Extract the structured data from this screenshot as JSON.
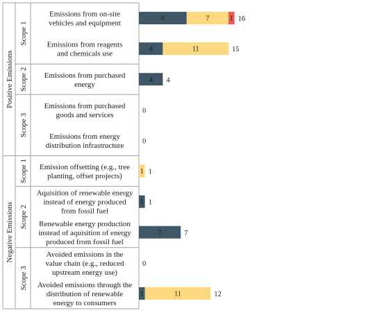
{
  "colors": {
    "dark": "#3f5767",
    "light": "#fcd97f",
    "red": "#ea5b53",
    "text_on_dark": "#111111",
    "grid_line": "#a0a0a0"
  },
  "chart_data": {
    "type": "bar",
    "orientation": "horizontal",
    "stacked": true,
    "groups": [
      {
        "label": "Positive Emissions",
        "scopes": [
          {
            "label": "Scope 1",
            "categories": [
              {
                "label": [
                  "Emissions from on-site",
                  "vehicles and equipment"
                ],
                "segments": [
                  8,
                  7,
                  1
                ],
                "total": "16"
              },
              {
                "label": [
                  "Emissions from reagents",
                  "and chemicals use"
                ],
                "segments": [
                  4,
                  11
                ],
                "total": "15"
              }
            ]
          },
          {
            "label": "Scope 2",
            "categories": [
              {
                "label": [
                  "Emissions from purchased",
                  "energy"
                ],
                "segments": [
                  4
                ],
                "total": "4"
              }
            ]
          },
          {
            "label": "Scope 3",
            "categories": [
              {
                "label": [
                  "Emissions from purchased",
                  "goods and services"
                ],
                "segments": [],
                "total": "0"
              },
              {
                "label": [
                  "Emissions from energy",
                  "distribution infrastructure"
                ],
                "segments": [],
                "total": "0"
              }
            ]
          }
        ]
      },
      {
        "label": "Negative Emissions",
        "scopes": [
          {
            "label": "Scope 1",
            "categories": [
              {
                "label": [
                  "Emission offsetting (e.g., tree",
                  "planting, offset projects)"
                ],
                "segments": [
                  0,
                  1
                ],
                "total": "1"
              }
            ]
          },
          {
            "label": "Scope 2",
            "categories": [
              {
                "label": [
                  "Aquisition of renewable energy",
                  "instead of energy produced",
                  "from fossil fuel"
                ],
                "segments": [
                  1
                ],
                "total": "1"
              },
              {
                "label": [
                  "Renewable energy production",
                  "instead of aquisition of energy",
                  "produced from fossil fuel"
                ],
                "segments": [
                  7
                ],
                "total": "7"
              }
            ]
          },
          {
            "label": "Scope 3",
            "categories": [
              {
                "label": [
                  "Avoided emissions in the",
                  "value chain (e.g., reduced",
                  "upstream energy use)"
                ],
                "segments": [],
                "total": "0"
              },
              {
                "label": [
                  "Avoided emissions through the",
                  "distribution of renewable",
                  "energy to consumers"
                ],
                "segments": [
                  1,
                  11
                ],
                "total": "12"
              }
            ]
          }
        ]
      }
    ],
    "segment_colors": [
      "dark",
      "light",
      "red"
    ],
    "xlim": [
      0,
      17
    ]
  }
}
